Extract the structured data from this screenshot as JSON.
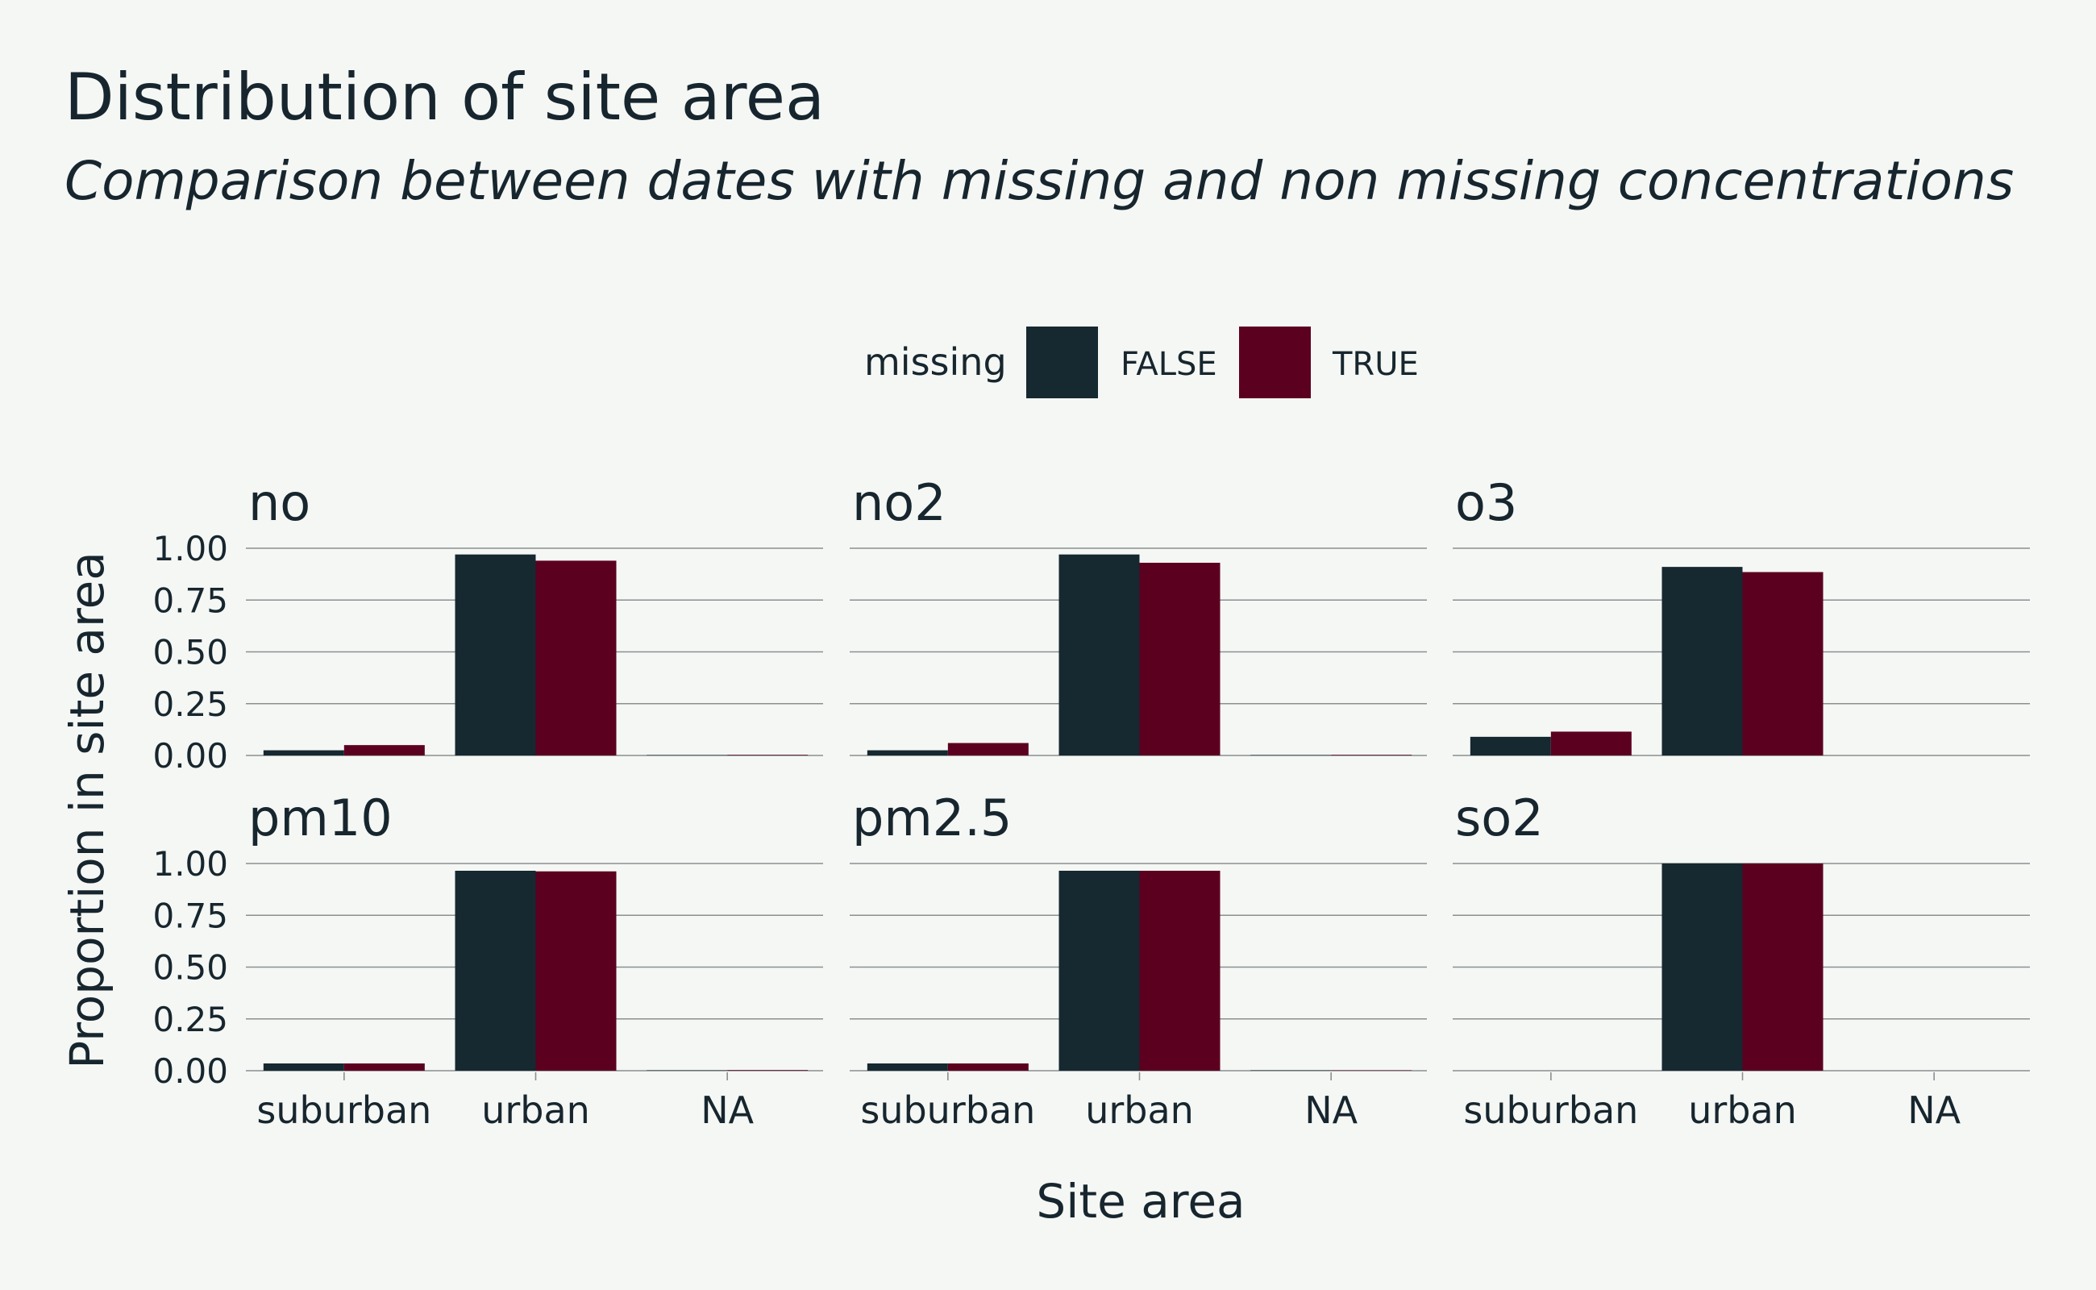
{
  "title": "Distribution of site area",
  "subtitle": "Comparison between dates with missing and non missing concentrations",
  "colors": {
    "background": "#f5f7f4",
    "text": "#17262e",
    "grid": "#8a8f91",
    "false_series": "#162830",
    "true_series": "#5c0020"
  },
  "legend": {
    "title": "missing",
    "items": [
      "FALSE",
      "TRUE"
    ],
    "placement": "top"
  },
  "chart_data": {
    "type": "bar",
    "layout": "faceted grouped bars, 2 rows x 3 columns",
    "categories": [
      "suburban",
      "urban",
      "NA"
    ],
    "xlabel": "Site area",
    "ylabel": "Proportion in site area",
    "ylim": [
      0,
      1
    ],
    "yticks": [
      "0.00",
      "0.25",
      "0.50",
      "0.75",
      "1.00"
    ],
    "grid": true,
    "facets": [
      {
        "name": "no",
        "series": [
          {
            "name": "FALSE",
            "values": [
              0.025,
              0.97,
              0.002
            ]
          },
          {
            "name": "TRUE",
            "values": [
              0.05,
              0.94,
              0.003
            ]
          }
        ]
      },
      {
        "name": "no2",
        "series": [
          {
            "name": "FALSE",
            "values": [
              0.025,
              0.97,
              0.002
            ]
          },
          {
            "name": "TRUE",
            "values": [
              0.06,
              0.93,
              0.003
            ]
          }
        ]
      },
      {
        "name": "o3",
        "series": [
          {
            "name": "FALSE",
            "values": [
              0.09,
              0.91,
              0
            ]
          },
          {
            "name": "TRUE",
            "values": [
              0.115,
              0.885,
              0
            ]
          }
        ]
      },
      {
        "name": "pm10",
        "series": [
          {
            "name": "FALSE",
            "values": [
              0.035,
              0.965,
              0.002
            ]
          },
          {
            "name": "TRUE",
            "values": [
              0.035,
              0.962,
              0.003
            ]
          }
        ]
      },
      {
        "name": "pm2.5",
        "series": [
          {
            "name": "FALSE",
            "values": [
              0.035,
              0.965,
              0.002
            ]
          },
          {
            "name": "TRUE",
            "values": [
              0.035,
              0.965,
              0.002
            ]
          }
        ]
      },
      {
        "name": "so2",
        "series": [
          {
            "name": "FALSE",
            "values": [
              0,
              1.0,
              0
            ]
          },
          {
            "name": "TRUE",
            "values": [
              0,
              1.0,
              0
            ]
          }
        ]
      }
    ]
  }
}
